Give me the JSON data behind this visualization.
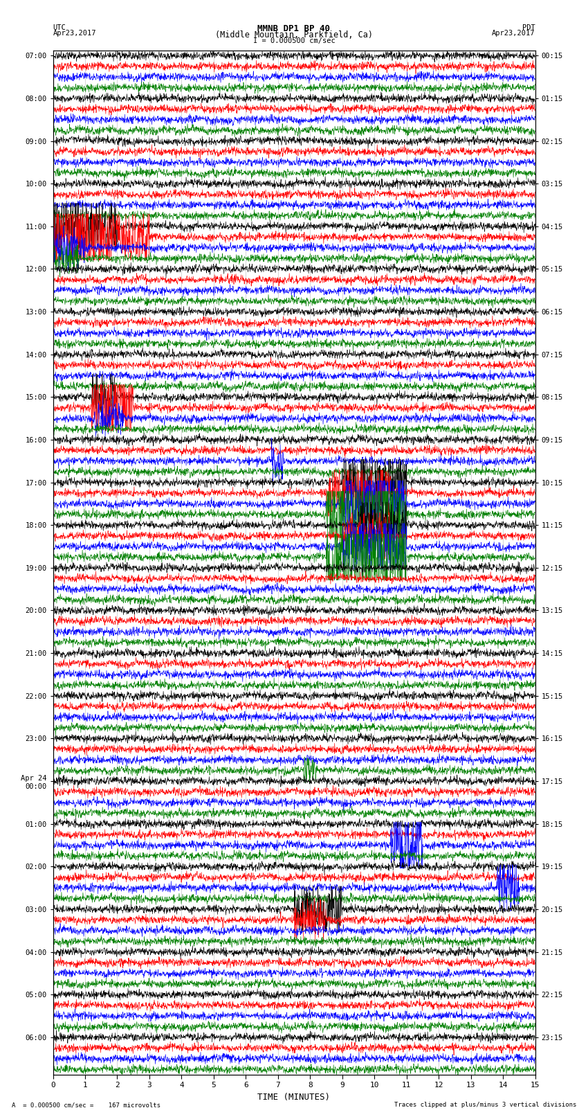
{
  "title_line1": "MMNB DP1 BP 40",
  "title_line2": "(Middle Mountain, Parkfield, Ca)",
  "scale_label": "I = 0.000500 cm/sec",
  "footer_left": "A  = 0.000500 cm/sec =    167 microvolts",
  "footer_right": "Traces clipped at plus/minus 3 vertical divisions",
  "xlabel": "TIME (MINUTES)",
  "bg_color": "#ffffff",
  "trace_colors": [
    "#000000",
    "#ff0000",
    "#0000ff",
    "#008000"
  ],
  "n_rows": 96,
  "minutes": 15,
  "utc_times": [
    "07:00",
    "",
    "",
    "",
    "08:00",
    "",
    "",
    "",
    "09:00",
    "",
    "",
    "",
    "10:00",
    "",
    "",
    "",
    "11:00",
    "",
    "",
    "",
    "12:00",
    "",
    "",
    "",
    "13:00",
    "",
    "",
    "",
    "14:00",
    "",
    "",
    "",
    "15:00",
    "",
    "",
    "",
    "16:00",
    "",
    "",
    "",
    "17:00",
    "",
    "",
    "",
    "18:00",
    "",
    "",
    "",
    "19:00",
    "",
    "",
    "",
    "20:00",
    "",
    "",
    "",
    "21:00",
    "",
    "",
    "",
    "22:00",
    "",
    "",
    "",
    "23:00",
    "",
    "",
    "",
    "Apr 24\n00:00",
    "",
    "",
    "",
    "01:00",
    "",
    "",
    "",
    "02:00",
    "",
    "",
    "",
    "03:00",
    "",
    "",
    "",
    "04:00",
    "",
    "",
    "",
    "05:00",
    "",
    "",
    "",
    "06:00",
    "",
    "",
    ""
  ],
  "pdt_times": [
    "00:15",
    "",
    "",
    "",
    "01:15",
    "",
    "",
    "",
    "02:15",
    "",
    "",
    "",
    "03:15",
    "",
    "",
    "",
    "04:15",
    "",
    "",
    "",
    "05:15",
    "",
    "",
    "",
    "06:15",
    "",
    "",
    "",
    "07:15",
    "",
    "",
    "",
    "08:15",
    "",
    "",
    "",
    "09:15",
    "",
    "",
    "",
    "10:15",
    "",
    "",
    "",
    "11:15",
    "",
    "",
    "",
    "12:15",
    "",
    "",
    "",
    "13:15",
    "",
    "",
    "",
    "14:15",
    "",
    "",
    "",
    "15:15",
    "",
    "",
    "",
    "16:15",
    "",
    "",
    "",
    "17:15",
    "",
    "",
    "",
    "18:15",
    "",
    "",
    "",
    "19:15",
    "",
    "",
    "",
    "20:15",
    "",
    "",
    "",
    "21:15",
    "",
    "",
    "",
    "22:15",
    "",
    "",
    "",
    "23:15",
    "",
    "",
    ""
  ]
}
